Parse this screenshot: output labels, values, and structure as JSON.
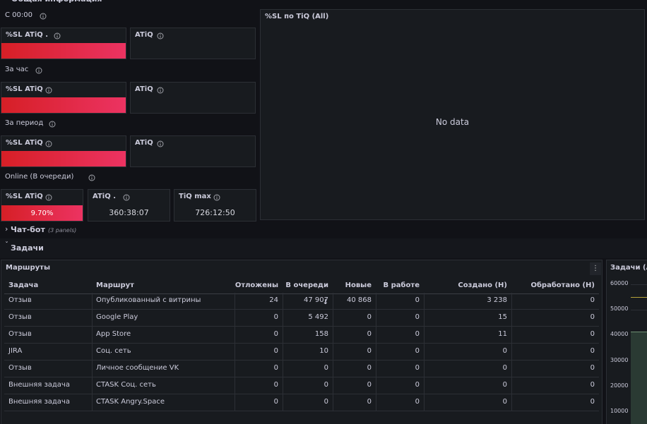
{
  "section_title": "Общая информация",
  "groups": [
    {
      "label": "С 00:00",
      "panels": [
        {
          "title": "%SL ATiQ ."
        },
        {
          "title": "ATiQ"
        }
      ]
    },
    {
      "label": "За час",
      "panels": [
        {
          "title": "%SL ATiQ"
        },
        {
          "title": "ATiQ"
        }
      ]
    },
    {
      "label": "За период",
      "panels": [
        {
          "title": "%SL ATiQ"
        },
        {
          "title": "ATiQ"
        }
      ]
    },
    {
      "label": "Online (В очереди)",
      "panels": [
        {
          "title": "%SL ATiQ",
          "value": "9.70%"
        },
        {
          "title": "ATiQ .",
          "value": "360:38:07"
        },
        {
          "title": "TiQ max",
          "value": "726:12:50"
        }
      ]
    }
  ],
  "sl_panel": {
    "title": "%SL по TiQ (All)",
    "message": "No data"
  },
  "rows": [
    {
      "title": "Чат-бот",
      "note": "(3 panels)"
    },
    {
      "title": "Задачи"
    }
  ],
  "table": {
    "title": "Маршруты",
    "columns": [
      "Задача",
      "Маршрут",
      "Отложены",
      "В очереди ↓",
      "Новые",
      "В работе",
      "Создано (Н)",
      "Обработано (Н)"
    ],
    "rows": [
      [
        "Отзыв",
        "Опубликованный с витрины",
        "24",
        "47 907",
        "40 868",
        "0",
        "3 238",
        "0"
      ],
      [
        "Отзыв",
        "Google Play",
        "0",
        "5 492",
        "0",
        "0",
        "15",
        "0"
      ],
      [
        "Отзыв",
        "App Store",
        "0",
        "158",
        "0",
        "0",
        "11",
        "0"
      ],
      [
        "JIRA",
        "Соц. сеть",
        "0",
        "10",
        "0",
        "0",
        "0",
        "0"
      ],
      [
        "Отзыв",
        "Личное сообщение VK",
        "0",
        "0",
        "0",
        "0",
        "0",
        "0"
      ],
      [
        "Внешняя задача",
        "CTASK Соц. сеть",
        "0",
        "0",
        "0",
        "0",
        "0",
        "0"
      ],
      [
        "Внешняя задача",
        "CTASK Angry.Space",
        "0",
        "0",
        "0",
        "0",
        "0",
        "0"
      ]
    ]
  },
  "tasks_panel": {
    "title": "Задачи (All",
    "yticks": [
      "60000",
      "50000",
      "40000",
      "30000",
      "20000",
      "10000"
    ]
  }
}
